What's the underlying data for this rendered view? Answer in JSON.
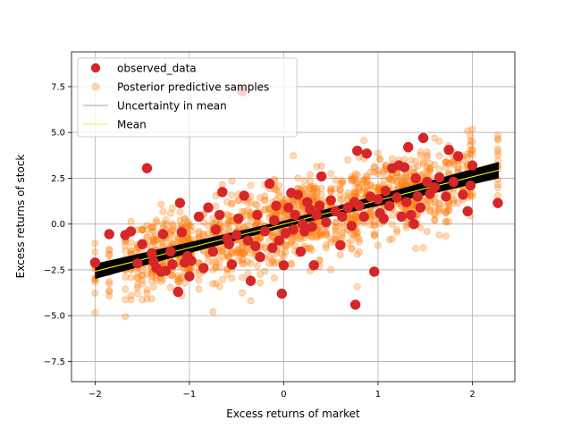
{
  "chart_data": {
    "type": "scatter",
    "xlabel": "Excess returns of market",
    "ylabel": "Excess returns of stock",
    "xlim": [
      -2.25,
      2.45
    ],
    "ylim": [
      -8.6,
      9.4
    ],
    "xticks": [
      -2,
      -1,
      0,
      1,
      2
    ],
    "xtick_labels": [
      "−2",
      "−1",
      "0",
      "1",
      "2"
    ],
    "yticks": [
      -7.5,
      -5.0,
      -2.5,
      0.0,
      2.5,
      5.0,
      7.5
    ],
    "ytick_labels": [
      "−7.5",
      "−5.0",
      "−2.5",
      "0.0",
      "2.5",
      "5.0",
      "7.5"
    ],
    "grid": true,
    "legend_placement": "upper-left",
    "legend": [
      {
        "label": "observed_data",
        "marker": "circle",
        "color": "#d62728"
      },
      {
        "label": "Posterior predictive samples",
        "marker": "circle",
        "color": "#ff7f0e",
        "alpha": 0.3
      },
      {
        "label": "Uncertainty in mean",
        "marker": "line",
        "color": "#808080"
      },
      {
        "label": "Mean",
        "marker": "line",
        "color": "#e8e800"
      }
    ],
    "colors": {
      "observed": "#d62728",
      "posterior": "#ff7f0e",
      "uncertainty": "#000000",
      "mean": "#ffff00"
    },
    "mean_line": {
      "intercept": 0.0,
      "slope": 1.29
    },
    "uncertainty_band": {
      "x_range": [
        -2.0,
        2.28
      ],
      "half_width_at_ends": 0.45
    },
    "posterior_noise_sd": 1.1,
    "observed_data": [
      [
        -2.0,
        -2.1
      ],
      [
        -1.85,
        -0.55
      ],
      [
        -1.68,
        -0.6
      ],
      [
        -1.62,
        -0.4
      ],
      [
        -1.55,
        -2.15
      ],
      [
        -1.5,
        -1.1
      ],
      [
        -1.45,
        3.05
      ],
      [
        -1.4,
        -1.6
      ],
      [
        -1.38,
        -2.05
      ],
      [
        -1.35,
        -2.4
      ],
      [
        -1.3,
        -2.6
      ],
      [
        -1.28,
        -0.55
      ],
      [
        -1.25,
        -2.55
      ],
      [
        -1.2,
        -1.5
      ],
      [
        -1.18,
        -2.2
      ],
      [
        -1.12,
        -3.7
      ],
      [
        -1.1,
        1.15
      ],
      [
        -1.08,
        -0.45
      ],
      [
        -1.05,
        -2.1
      ],
      [
        -1.02,
        -1.75
      ],
      [
        -1.0,
        -2.85
      ],
      [
        -0.98,
        -2.0
      ],
      [
        -0.9,
        0.4
      ],
      [
        -0.85,
        -2.4
      ],
      [
        -0.8,
        0.9
      ],
      [
        -0.75,
        -1.5
      ],
      [
        -0.72,
        -0.3
      ],
      [
        -0.68,
        0.5
      ],
      [
        -0.65,
        1.75
      ],
      [
        -0.6,
        -0.8
      ],
      [
        -0.58,
        -1.1
      ],
      [
        -0.55,
        -2.2
      ],
      [
        -0.5,
        -0.6
      ],
      [
        -0.48,
        0.3
      ],
      [
        -0.44,
        7.25
      ],
      [
        -0.42,
        1.55
      ],
      [
        -0.38,
        -0.9
      ],
      [
        -0.35,
        -3.1
      ],
      [
        -0.3,
        -1.2
      ],
      [
        -0.28,
        0.5
      ],
      [
        -0.25,
        -1.8
      ],
      [
        -0.2,
        -0.4
      ],
      [
        -0.15,
        2.2
      ],
      [
        -0.12,
        -1.3
      ],
      [
        -0.1,
        0.2
      ],
      [
        -0.08,
        1.0
      ],
      [
        -0.05,
        -0.9
      ],
      [
        -0.02,
        -3.8
      ],
      [
        0.0,
        -2.25
      ],
      [
        0.02,
        -0.5
      ],
      [
        0.05,
        0.9
      ],
      [
        0.08,
        1.7
      ],
      [
        0.1,
        -0.3
      ],
      [
        0.12,
        0.5
      ],
      [
        0.15,
        1.6
      ],
      [
        0.18,
        -1.5
      ],
      [
        0.2,
        0.0
      ],
      [
        0.22,
        -0.4
      ],
      [
        0.25,
        1.2
      ],
      [
        0.28,
        0.8
      ],
      [
        0.3,
        -0.15
      ],
      [
        0.32,
        -2.25
      ],
      [
        0.35,
        0.5
      ],
      [
        0.38,
        1.0
      ],
      [
        0.4,
        2.6
      ],
      [
        0.45,
        0.1
      ],
      [
        0.5,
        1.3
      ],
      [
        0.55,
        0.7
      ],
      [
        0.6,
        -1.15
      ],
      [
        0.62,
        0.4
      ],
      [
        0.68,
        0.9
      ],
      [
        0.72,
        -0.1
      ],
      [
        0.75,
        1.2
      ],
      [
        0.76,
        -4.4
      ],
      [
        0.78,
        4.0
      ],
      [
        0.8,
        1.0
      ],
      [
        0.85,
        0.4
      ],
      [
        0.88,
        3.85
      ],
      [
        0.92,
        1.5
      ],
      [
        0.96,
        -2.6
      ],
      [
        1.0,
        1.35
      ],
      [
        1.02,
        0.6
      ],
      [
        1.06,
        0.3
      ],
      [
        1.08,
        1.8
      ],
      [
        1.12,
        1.0
      ],
      [
        1.15,
        3.05
      ],
      [
        1.2,
        1.45
      ],
      [
        1.22,
        3.2
      ],
      [
        1.25,
        0.4
      ],
      [
        1.28,
        3.1
      ],
      [
        1.3,
        1.2
      ],
      [
        1.32,
        4.2
      ],
      [
        1.35,
        0.5
      ],
      [
        1.38,
        0.0
      ],
      [
        1.4,
        2.5
      ],
      [
        1.42,
        1.5
      ],
      [
        1.45,
        0.9
      ],
      [
        1.48,
        4.7
      ],
      [
        1.52,
        2.3
      ],
      [
        1.55,
        1.65
      ],
      [
        1.6,
        2.0
      ],
      [
        1.65,
        2.55
      ],
      [
        1.72,
        1.5
      ],
      [
        1.75,
        4.05
      ],
      [
        1.8,
        2.3
      ],
      [
        1.85,
        3.7
      ],
      [
        1.9,
        1.6
      ],
      [
        1.95,
        0.7
      ],
      [
        1.98,
        2.1
      ],
      [
        2.0,
        3.2
      ],
      [
        2.27,
        1.15
      ]
    ]
  }
}
